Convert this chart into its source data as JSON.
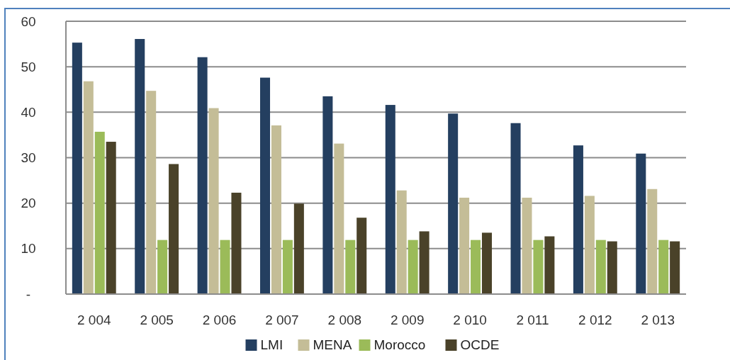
{
  "chart_data": {
    "type": "bar",
    "categories": [
      "2 004",
      "2 005",
      "2 006",
      "2 007",
      "2 008",
      "2 009",
      "2 010",
      "2 011",
      "2 012",
      "2 013"
    ],
    "series": [
      {
        "name": "LMI",
        "color": "#243f60",
        "values": [
          55.3,
          56.1,
          52.1,
          47.6,
          43.5,
          41.6,
          39.7,
          37.6,
          32.7,
          30.9
        ]
      },
      {
        "name": "MENA",
        "color": "#c4bd97",
        "values": [
          46.8,
          44.7,
          40.9,
          37.1,
          33.1,
          22.8,
          21.2,
          21.2,
          21.6,
          23.1
        ]
      },
      {
        "name": "Morocco",
        "color": "#9bbb59",
        "values": [
          35.7,
          11.9,
          11.9,
          11.9,
          11.9,
          11.9,
          11.9,
          11.9,
          11.9,
          11.9
        ]
      },
      {
        "name": "OCDE",
        "color": "#4a4229",
        "values": [
          33.5,
          28.6,
          22.3,
          19.9,
          16.8,
          13.8,
          13.5,
          12.7,
          11.6,
          11.6
        ]
      }
    ],
    "ylim": [
      0,
      60
    ],
    "yticks": [
      {
        "value": 0,
        "label": "-"
      },
      10,
      20,
      30,
      40,
      50,
      60
    ],
    "grid": "y",
    "legend": "bottom"
  }
}
